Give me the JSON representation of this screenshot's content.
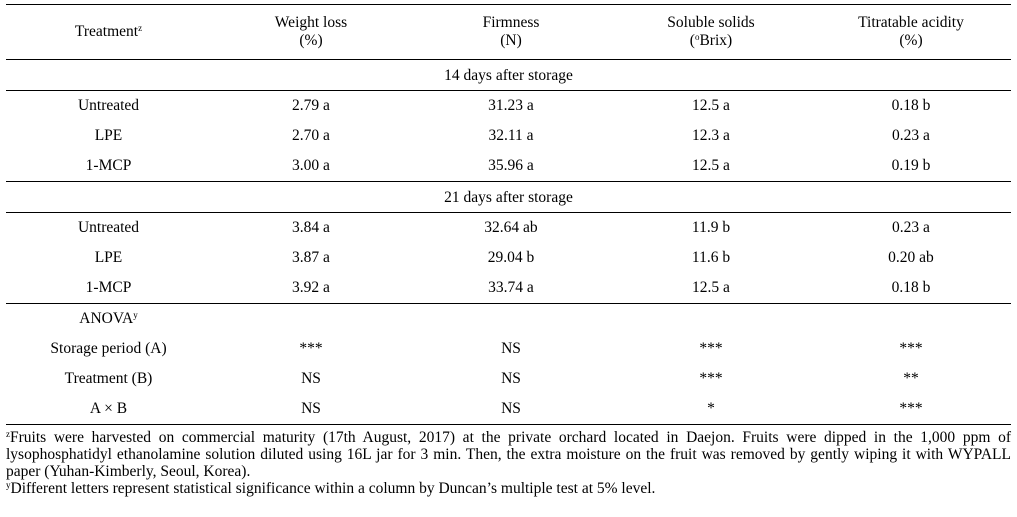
{
  "header": {
    "col0": "Treatment",
    "col0_sup": "z",
    "col1_l1": "Weight loss",
    "col1_l2": "(%)",
    "col2_l1": "Firmness",
    "col2_l2": "(N)",
    "col3_l1": "Soluble solids",
    "col3_l2_sup": "o",
    "col3_l2": "Brix)",
    "col3_l2_pre": "(",
    "col4_l1": "Titratable acidity",
    "col4_l2": "(%)"
  },
  "sections": [
    {
      "title": "14 days after storage",
      "rows": [
        {
          "t": "Untreated",
          "w": "2.79 a",
          "f": "31.23 a",
          "s": "12.5 a",
          "a": "0.18 b"
        },
        {
          "t": "LPE",
          "w": "2.70 a",
          "f": "32.11 a",
          "s": "12.3 a",
          "a": "0.23 a"
        },
        {
          "t": "1-MCP",
          "w": "3.00 a",
          "f": "35.96 a",
          "s": "12.5 a",
          "a": "0.19 b"
        }
      ]
    },
    {
      "title": "21 days after storage",
      "rows": [
        {
          "t": "Untreated",
          "w": "3.84 a",
          "f": "32.64 ab",
          "s": "11.9 b",
          "a": "0.23 a"
        },
        {
          "t": "LPE",
          "w": "3.87 a",
          "f": "29.04 b",
          "s": "11.6 b",
          "a": "0.20 ab"
        },
        {
          "t": "1-MCP",
          "w": "3.92 a",
          "f": "33.74 a",
          "s": "12.5 a",
          "a": "0.18 b"
        }
      ]
    }
  ],
  "anova": {
    "label": "ANOVA",
    "label_sup": "y",
    "rows": [
      {
        "t": "Storage period (A)",
        "w": "***",
        "f": "NS",
        "s": "***",
        "a": "***"
      },
      {
        "t": "Treatment (B)",
        "w": "NS",
        "f": "NS",
        "s": "***",
        "a": "**"
      },
      {
        "t": "A × B",
        "w": "NS",
        "f": "NS",
        "s": "*",
        "a": "***"
      }
    ]
  },
  "footnotes": {
    "z_sup": "z",
    "z": "Fruits were harvested on commercial maturity (17th August, 2017) at the private orchard located in Daejon. Fruits were dipped in the 1,000 ppm of lysophosphatidyl ethanolamine solution diluted using 16L jar for 3 min. Then, the extra moisture on the fruit was removed by gently wiping it with WYPALL paper (Yuhan-Kimberly, Seoul, Korea).",
    "y_sup": "y",
    "y": "Different letters represent statistical significance within a column by Duncan’s multiple test at 5% level."
  }
}
